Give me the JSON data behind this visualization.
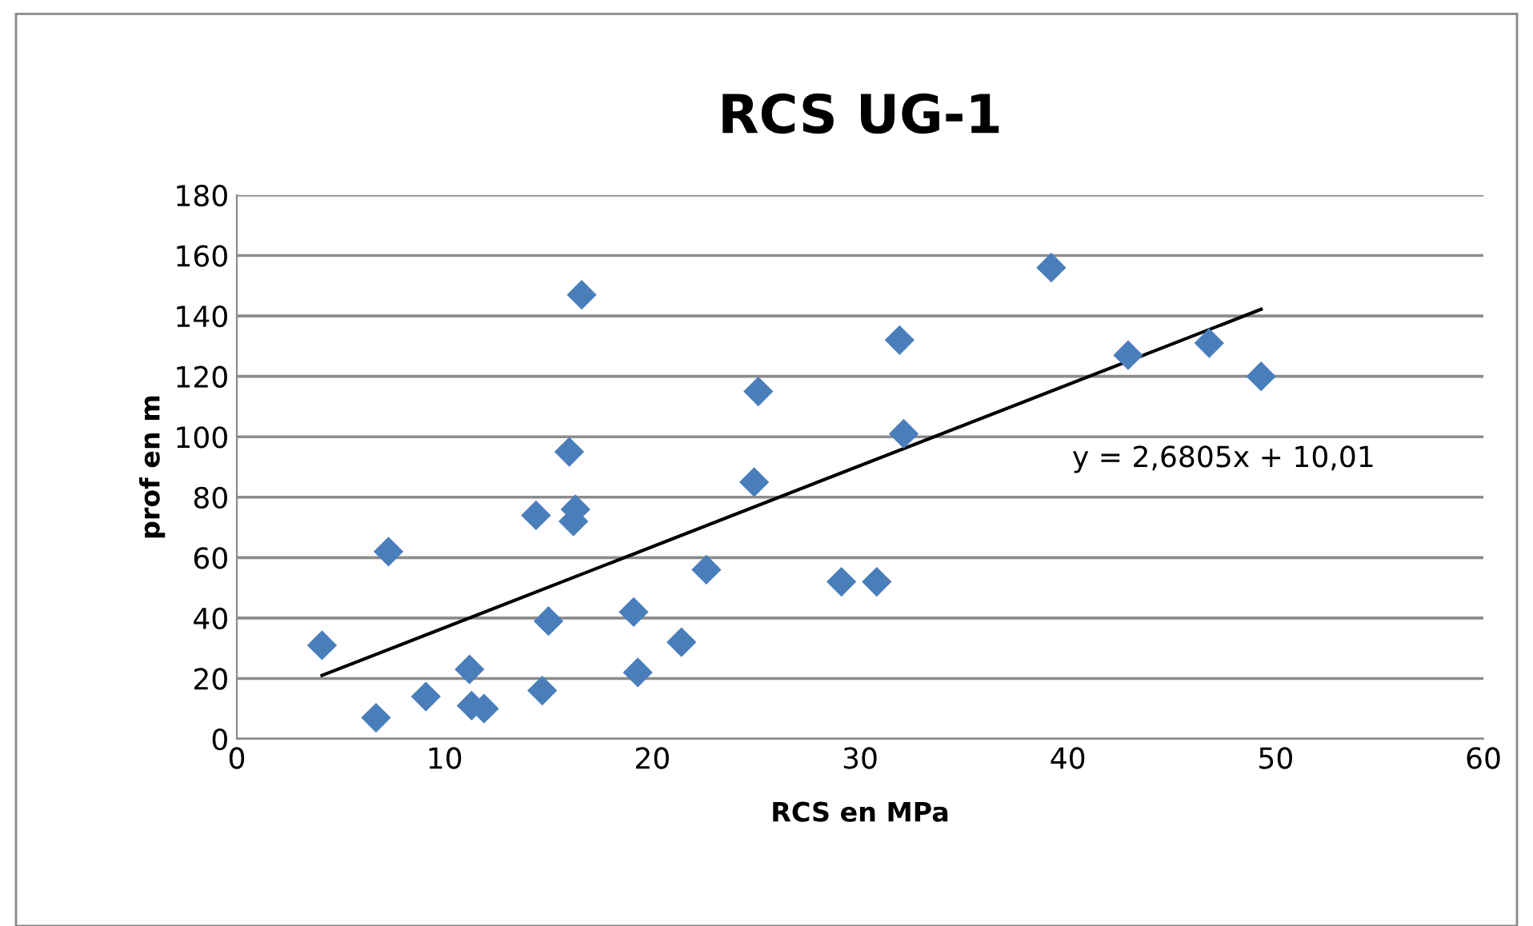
{
  "chart_data": {
    "type": "scatter",
    "title": "RCS UG-1",
    "xlabel": "RCS en MPa",
    "ylabel": "prof en m",
    "xlim": [
      0,
      60
    ],
    "xticks": [
      0,
      10,
      20,
      30,
      40,
      50,
      60
    ],
    "ylim": [
      0,
      180
    ],
    "yticks": [
      0,
      20,
      40,
      60,
      80,
      100,
      120,
      140,
      160,
      180
    ],
    "grid": "y",
    "legend": false,
    "marker": "diamond",
    "annotations": [
      "y = 2,6805x + 10,01"
    ],
    "series": [
      {
        "color": "#4a7ebb",
        "x": [
          4.1,
          6.7,
          7.3,
          9.1,
          11.2,
          11.3,
          11.9,
          14.4,
          14.7,
          15.0,
          16.0,
          16.2,
          16.3,
          16.6,
          19.1,
          19.3,
          21.4,
          22.6,
          24.9,
          25.1,
          29.1,
          30.8,
          31.9,
          32.1,
          39.2,
          42.9,
          46.8,
          49.3
        ],
        "values": [
          31,
          7,
          62,
          14,
          23,
          11,
          10,
          74,
          16,
          39,
          95,
          72,
          76,
          147,
          42,
          22,
          32,
          56,
          85,
          115,
          52,
          52,
          132,
          101,
          156,
          127,
          131,
          120
        ]
      },
      {
        "type": "line",
        "marker": "none",
        "color": "#000000",
        "x": [
          4.1,
          49.3
        ],
        "values": [
          21,
          142.2
        ]
      }
    ]
  }
}
